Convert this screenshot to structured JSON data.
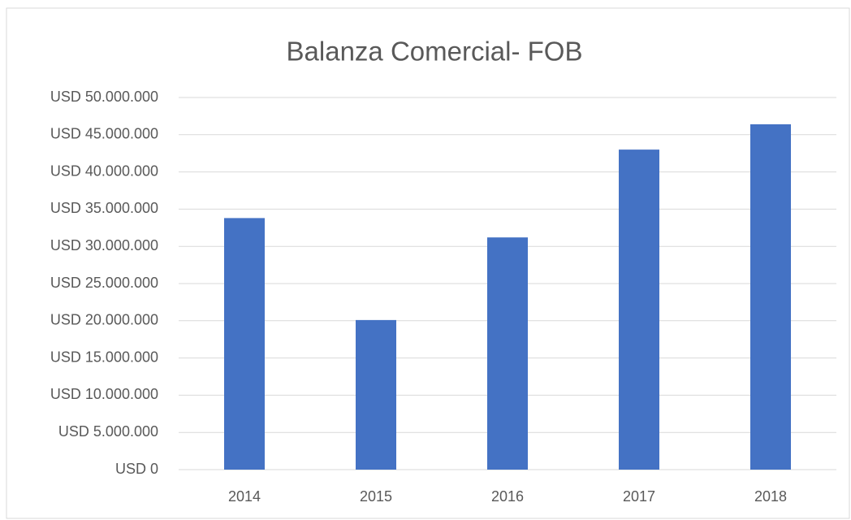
{
  "chart_data": {
    "type": "bar",
    "title": "Balanza Comercial- FOB",
    "categories": [
      "2014",
      "2015",
      "2016",
      "2017",
      "2018"
    ],
    "values": [
      33800000,
      20100000,
      31200000,
      43000000,
      46400000
    ],
    "color": "#4472c4",
    "ylim": [
      0,
      50000000
    ],
    "yticks": [
      {
        "value": 0,
        "label": "USD 0"
      },
      {
        "value": 5000000,
        "label": "USD 5.000.000"
      },
      {
        "value": 10000000,
        "label": "USD 10.000.000"
      },
      {
        "value": 15000000,
        "label": "USD 15.000.000"
      },
      {
        "value": 20000000,
        "label": "USD 20.000.000"
      },
      {
        "value": 25000000,
        "label": "USD 25.000.000"
      },
      {
        "value": 30000000,
        "label": "USD 30.000.000"
      },
      {
        "value": 35000000,
        "label": "USD 35.000.000"
      },
      {
        "value": 40000000,
        "label": "USD 40.000.000"
      },
      {
        "value": 45000000,
        "label": "USD 45.000.000"
      },
      {
        "value": 50000000,
        "label": "USD 50.000.000"
      }
    ],
    "grid": true
  }
}
